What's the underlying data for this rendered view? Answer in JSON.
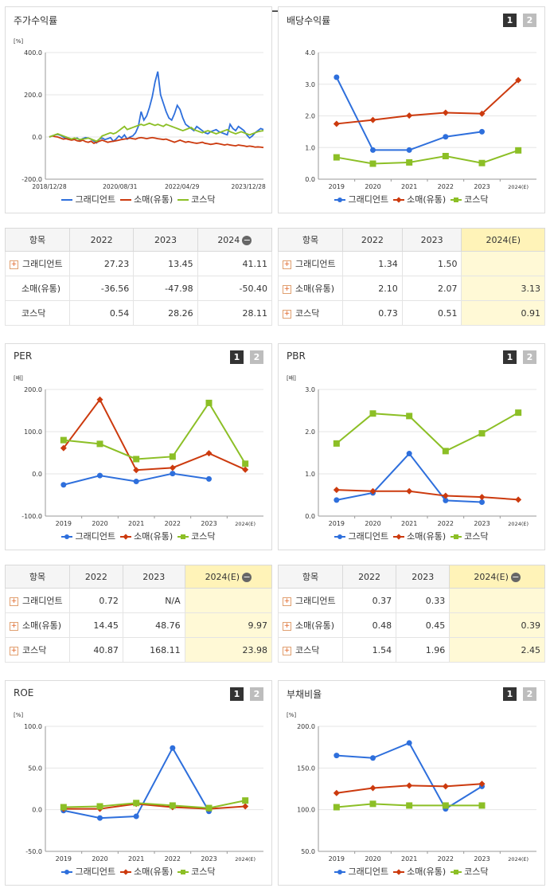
{
  "colors": {
    "gradient": "#2e6fdc",
    "retail": "#cc3a0e",
    "kosdaq": "#8cbf26"
  },
  "legend_names": [
    "그래디언트",
    "소매(유통)",
    "코스닥"
  ],
  "buttons": {
    "one": "1",
    "two": "2"
  },
  "minus_glyph": "−",
  "plus_glyph": "+",
  "panels": {
    "stock": {
      "title": "주가수익률"
    },
    "div": {
      "title": "배당수익률"
    },
    "per": {
      "title": "PER"
    },
    "pbr": {
      "title": "PBR"
    },
    "roe": {
      "title": "ROE"
    },
    "debt": {
      "title": "부채비율"
    }
  },
  "chart_data": [
    {
      "id": "stock",
      "type": "line",
      "title": "주가수익률",
      "ylabel": "[%]",
      "ylim": [
        -200,
        400
      ],
      "yticks": [
        400,
        200,
        0,
        -200
      ],
      "ytick_labels": [
        "400.0",
        "200.0",
        "0.0",
        "-200.0"
      ],
      "x_tick_labels": [
        "2018/12/28",
        "2020/08/31",
        "2022/04/29",
        "2023/12/28"
      ],
      "x_tick_pos": [
        0,
        0.33,
        0.62,
        0.93
      ],
      "series": [
        {
          "name": "그래디언트",
          "color": "#2e6fdc",
          "values": [
            0,
            5,
            10,
            12,
            8,
            0,
            -8,
            -5,
            -12,
            -10,
            -5,
            -15,
            -8,
            -3,
            -5,
            -10,
            -20,
            -28,
            -10,
            -5,
            -12,
            -8,
            -3,
            -20,
            -10,
            5,
            -5,
            10,
            -10,
            0,
            5,
            20,
            50,
            120,
            80,
            100,
            140,
            190,
            260,
            310,
            200,
            160,
            120,
            90,
            80,
            110,
            150,
            130,
            90,
            60,
            50,
            40,
            30,
            50,
            40,
            30,
            20,
            15,
            25,
            30,
            35,
            25,
            20,
            15,
            10,
            60,
            40,
            30,
            50,
            40,
            30,
            10,
            -5,
            5,
            20,
            30,
            40,
            35
          ]
        },
        {
          "name": "소매(유통)",
          "color": "#cc3a0e",
          "values": [
            0,
            5,
            2,
            0,
            -5,
            -10,
            -8,
            -12,
            -15,
            -12,
            -18,
            -20,
            -15,
            -22,
            -25,
            -20,
            -30,
            -25,
            -20,
            -15,
            -20,
            -25,
            -22,
            -20,
            -18,
            -15,
            -12,
            -10,
            -8,
            -5,
            -8,
            -10,
            -5,
            -3,
            -5,
            -8,
            -5,
            -3,
            -5,
            -8,
            -10,
            -12,
            -10,
            -15,
            -20,
            -25,
            -20,
            -15,
            -20,
            -25,
            -22,
            -25,
            -28,
            -30,
            -28,
            -25,
            -30,
            -32,
            -35,
            -33,
            -30,
            -32,
            -35,
            -38,
            -35,
            -38,
            -40,
            -42,
            -38,
            -40,
            -42,
            -45,
            -43,
            -45,
            -48,
            -47,
            -48,
            -50
          ]
        },
        {
          "name": "코스닥",
          "color": "#8cbf26",
          "values": [
            0,
            5,
            10,
            15,
            10,
            5,
            0,
            -5,
            -10,
            -5,
            -8,
            -12,
            -10,
            -8,
            -5,
            -10,
            -15,
            -20,
            -10,
            5,
            10,
            15,
            20,
            15,
            20,
            30,
            40,
            50,
            35,
            40,
            45,
            50,
            55,
            60,
            55,
            60,
            65,
            60,
            55,
            60,
            55,
            50,
            60,
            55,
            50,
            45,
            40,
            35,
            30,
            35,
            40,
            45,
            35,
            30,
            25,
            20,
            25,
            30,
            25,
            20,
            15,
            20,
            25,
            30,
            35,
            25,
            20,
            15,
            20,
            25,
            20,
            15,
            10,
            15,
            20,
            25,
            28,
            30
          ]
        }
      ]
    },
    {
      "id": "div",
      "type": "line",
      "title": "배당수익률",
      "categories": [
        "2019",
        "2020",
        "2021",
        "2022",
        "2023",
        "2024(E)"
      ],
      "ylim": [
        0,
        4
      ],
      "yticks": [
        4,
        3,
        2,
        1,
        0
      ],
      "ytick_labels": [
        "4.0",
        "3.0",
        "2.0",
        "1.0",
        "0.0"
      ],
      "series": [
        {
          "name": "그래디언트",
          "color": "#2e6fdc",
          "marker": "circle",
          "values": [
            3.22,
            0.92,
            0.92,
            1.34,
            1.5,
            null
          ]
        },
        {
          "name": "소매(유통)",
          "color": "#cc3a0e",
          "marker": "diamond",
          "values": [
            1.75,
            1.87,
            2.01,
            2.1,
            2.07,
            3.13
          ]
        },
        {
          "name": "코스닥",
          "color": "#8cbf26",
          "marker": "square",
          "values": [
            0.69,
            0.49,
            0.53,
            0.73,
            0.51,
            0.91
          ]
        }
      ]
    },
    {
      "id": "per",
      "type": "line",
      "title": "PER",
      "ylabel": "[배]",
      "categories": [
        "2019",
        "2020",
        "2021",
        "2022",
        "2023",
        "2024(E)"
      ],
      "ylim": [
        -100,
        200
      ],
      "yticks": [
        200,
        100,
        0,
        -100
      ],
      "ytick_labels": [
        "200.0",
        "100.0",
        "0.0",
        "-100.0"
      ],
      "series": [
        {
          "name": "그래디언트",
          "color": "#2e6fdc",
          "marker": "circle",
          "values": [
            -26,
            -4,
            -18,
            0.72,
            -12,
            null
          ]
        },
        {
          "name": "소매(유통)",
          "color": "#cc3a0e",
          "marker": "diamond",
          "values": [
            61,
            176,
            9,
            14.45,
            48.76,
            9.97
          ]
        },
        {
          "name": "코스닥",
          "color": "#8cbf26",
          "marker": "square",
          "values": [
            80,
            71,
            35,
            40.87,
            168.11,
            23.98
          ]
        }
      ]
    },
    {
      "id": "pbr",
      "type": "line",
      "title": "PBR",
      "ylabel": "[배]",
      "categories": [
        "2019",
        "2020",
        "2021",
        "2022",
        "2023",
        "2024(E)"
      ],
      "ylim": [
        0,
        3
      ],
      "yticks": [
        3,
        2,
        1,
        0
      ],
      "ytick_labels": [
        "3.0",
        "2.0",
        "1.0",
        "0.0"
      ],
      "series": [
        {
          "name": "그래디언트",
          "color": "#2e6fdc",
          "marker": "circle",
          "values": [
            0.38,
            0.55,
            1.48,
            0.37,
            0.33,
            null
          ]
        },
        {
          "name": "소매(유통)",
          "color": "#cc3a0e",
          "marker": "diamond",
          "values": [
            0.62,
            0.59,
            0.59,
            0.48,
            0.45,
            0.39
          ]
        },
        {
          "name": "코스닥",
          "color": "#8cbf26",
          "marker": "square",
          "values": [
            1.72,
            2.43,
            2.37,
            1.54,
            1.96,
            2.45
          ]
        }
      ]
    },
    {
      "id": "roe",
      "type": "line",
      "title": "ROE",
      "ylabel": "[%]",
      "categories": [
        "2019",
        "2020",
        "2021",
        "2022",
        "2023",
        "2024(E)"
      ],
      "ylim": [
        -50,
        100
      ],
      "yticks": [
        100,
        50,
        0,
        -50
      ],
      "ytick_labels": [
        "100.0",
        "50.0",
        "0.0",
        "-50.0"
      ],
      "series": [
        {
          "name": "그래디언트",
          "color": "#2e6fdc",
          "marker": "circle",
          "values": [
            -1,
            -10,
            -8,
            74,
            -2,
            null
          ]
        },
        {
          "name": "소매(유통)",
          "color": "#cc3a0e",
          "marker": "diamond",
          "values": [
            1,
            1,
            7,
            3,
            1,
            4
          ]
        },
        {
          "name": "코스닥",
          "color": "#8cbf26",
          "marker": "square",
          "values": [
            3,
            4,
            8,
            5,
            2,
            11
          ]
        }
      ]
    },
    {
      "id": "debt",
      "type": "line",
      "title": "부채비율",
      "ylabel": "[%]",
      "categories": [
        "2019",
        "2020",
        "2021",
        "2022",
        "2023",
        "2024(E)"
      ],
      "ylim": [
        50,
        200
      ],
      "yticks": [
        200,
        150,
        100,
        50
      ],
      "ytick_labels": [
        "200.0",
        "150.0",
        "100.0",
        "50.0"
      ],
      "series": [
        {
          "name": "그래디언트",
          "color": "#2e6fdc",
          "marker": "circle",
          "values": [
            165,
            162,
            180,
            101,
            128,
            null
          ]
        },
        {
          "name": "소매(유통)",
          "color": "#cc3a0e",
          "marker": "diamond",
          "values": [
            120,
            126,
            129,
            128,
            131,
            null
          ]
        },
        {
          "name": "코스닥",
          "color": "#8cbf26",
          "marker": "square",
          "values": [
            103,
            107,
            105,
            105,
            105,
            null
          ]
        }
      ]
    }
  ],
  "tables": {
    "stock": {
      "header": [
        "항목",
        "2022",
        "2023",
        "2024"
      ],
      "minus": true,
      "rows": [
        {
          "name": "그래디언트",
          "plus": true,
          "values": [
            "27.23",
            "13.45",
            "41.11"
          ]
        },
        {
          "name": "소매(유통)",
          "plus": false,
          "values": [
            "-36.56",
            "-47.98",
            "-50.40"
          ]
        },
        {
          "name": "코스닥",
          "plus": false,
          "values": [
            "0.54",
            "28.26",
            "28.11"
          ]
        }
      ]
    },
    "div": {
      "header": [
        "항목",
        "2022",
        "2023",
        "2024(E)"
      ],
      "minus": false,
      "highlight_last": true,
      "rows": [
        {
          "name": "그래디언트",
          "plus": true,
          "values": [
            "1.34",
            "1.50",
            ""
          ]
        },
        {
          "name": "소매(유통)",
          "plus": true,
          "values": [
            "2.10",
            "2.07",
            "3.13"
          ]
        },
        {
          "name": "코스닥",
          "plus": true,
          "values": [
            "0.73",
            "0.51",
            "0.91"
          ]
        }
      ]
    },
    "per": {
      "header": [
        "항목",
        "2022",
        "2023",
        "2024(E)"
      ],
      "minus": true,
      "highlight_last": true,
      "rows": [
        {
          "name": "그래디언트",
          "plus": true,
          "values": [
            "0.72",
            "N/A",
            ""
          ]
        },
        {
          "name": "소매(유통)",
          "plus": true,
          "values": [
            "14.45",
            "48.76",
            "9.97"
          ]
        },
        {
          "name": "코스닥",
          "plus": true,
          "values": [
            "40.87",
            "168.11",
            "23.98"
          ]
        }
      ]
    },
    "pbr": {
      "header": [
        "항목",
        "2022",
        "2023",
        "2024(E)"
      ],
      "minus": true,
      "highlight_last": true,
      "rows": [
        {
          "name": "그래디언트",
          "plus": true,
          "values": [
            "0.37",
            "0.33",
            ""
          ]
        },
        {
          "name": "소매(유통)",
          "plus": true,
          "values": [
            "0.48",
            "0.45",
            "0.39"
          ]
        },
        {
          "name": "코스닥",
          "plus": true,
          "values": [
            "1.54",
            "1.96",
            "2.45"
          ]
        }
      ]
    }
  }
}
